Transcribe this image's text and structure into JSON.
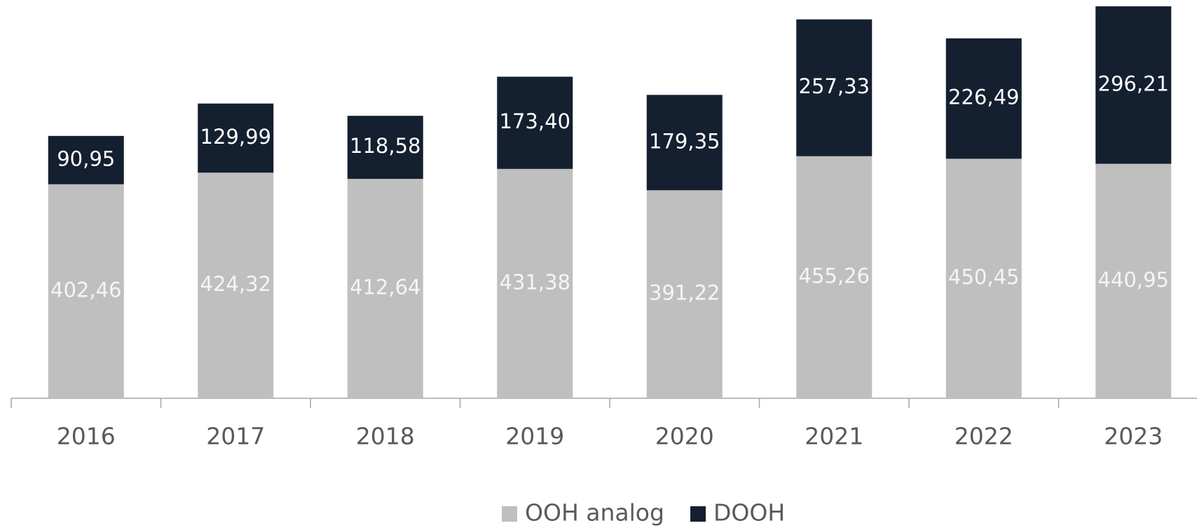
{
  "chart_data": {
    "type": "stacked_bar",
    "categories": [
      "2016",
      "2017",
      "2018",
      "2019",
      "2020",
      "2021",
      "2022",
      "2023"
    ],
    "series": [
      {
        "name": "OOH analog",
        "color": "#bfbfbf",
        "label_color": "#f5f5f5",
        "values": [
          402.46,
          424.32,
          412.64,
          431.38,
          391.22,
          455.26,
          450.45,
          440.95
        ],
        "value_labels": [
          "402,46",
          "424,32",
          "412,64",
          "431,38",
          "391,22",
          "455,26",
          "450,45",
          "440,95"
        ]
      },
      {
        "name": "DOOH",
        "color": "#141f30",
        "label_color": "#ffffff",
        "values": [
          90.95,
          129.99,
          118.58,
          173.4,
          179.35,
          257.33,
          226.49,
          296.21
        ],
        "value_labels": [
          "90,95",
          "129,99",
          "118,58",
          "173,40",
          "179,35",
          "257,33",
          "226,49",
          "296,21"
        ]
      }
    ],
    "legend": "bottom"
  }
}
